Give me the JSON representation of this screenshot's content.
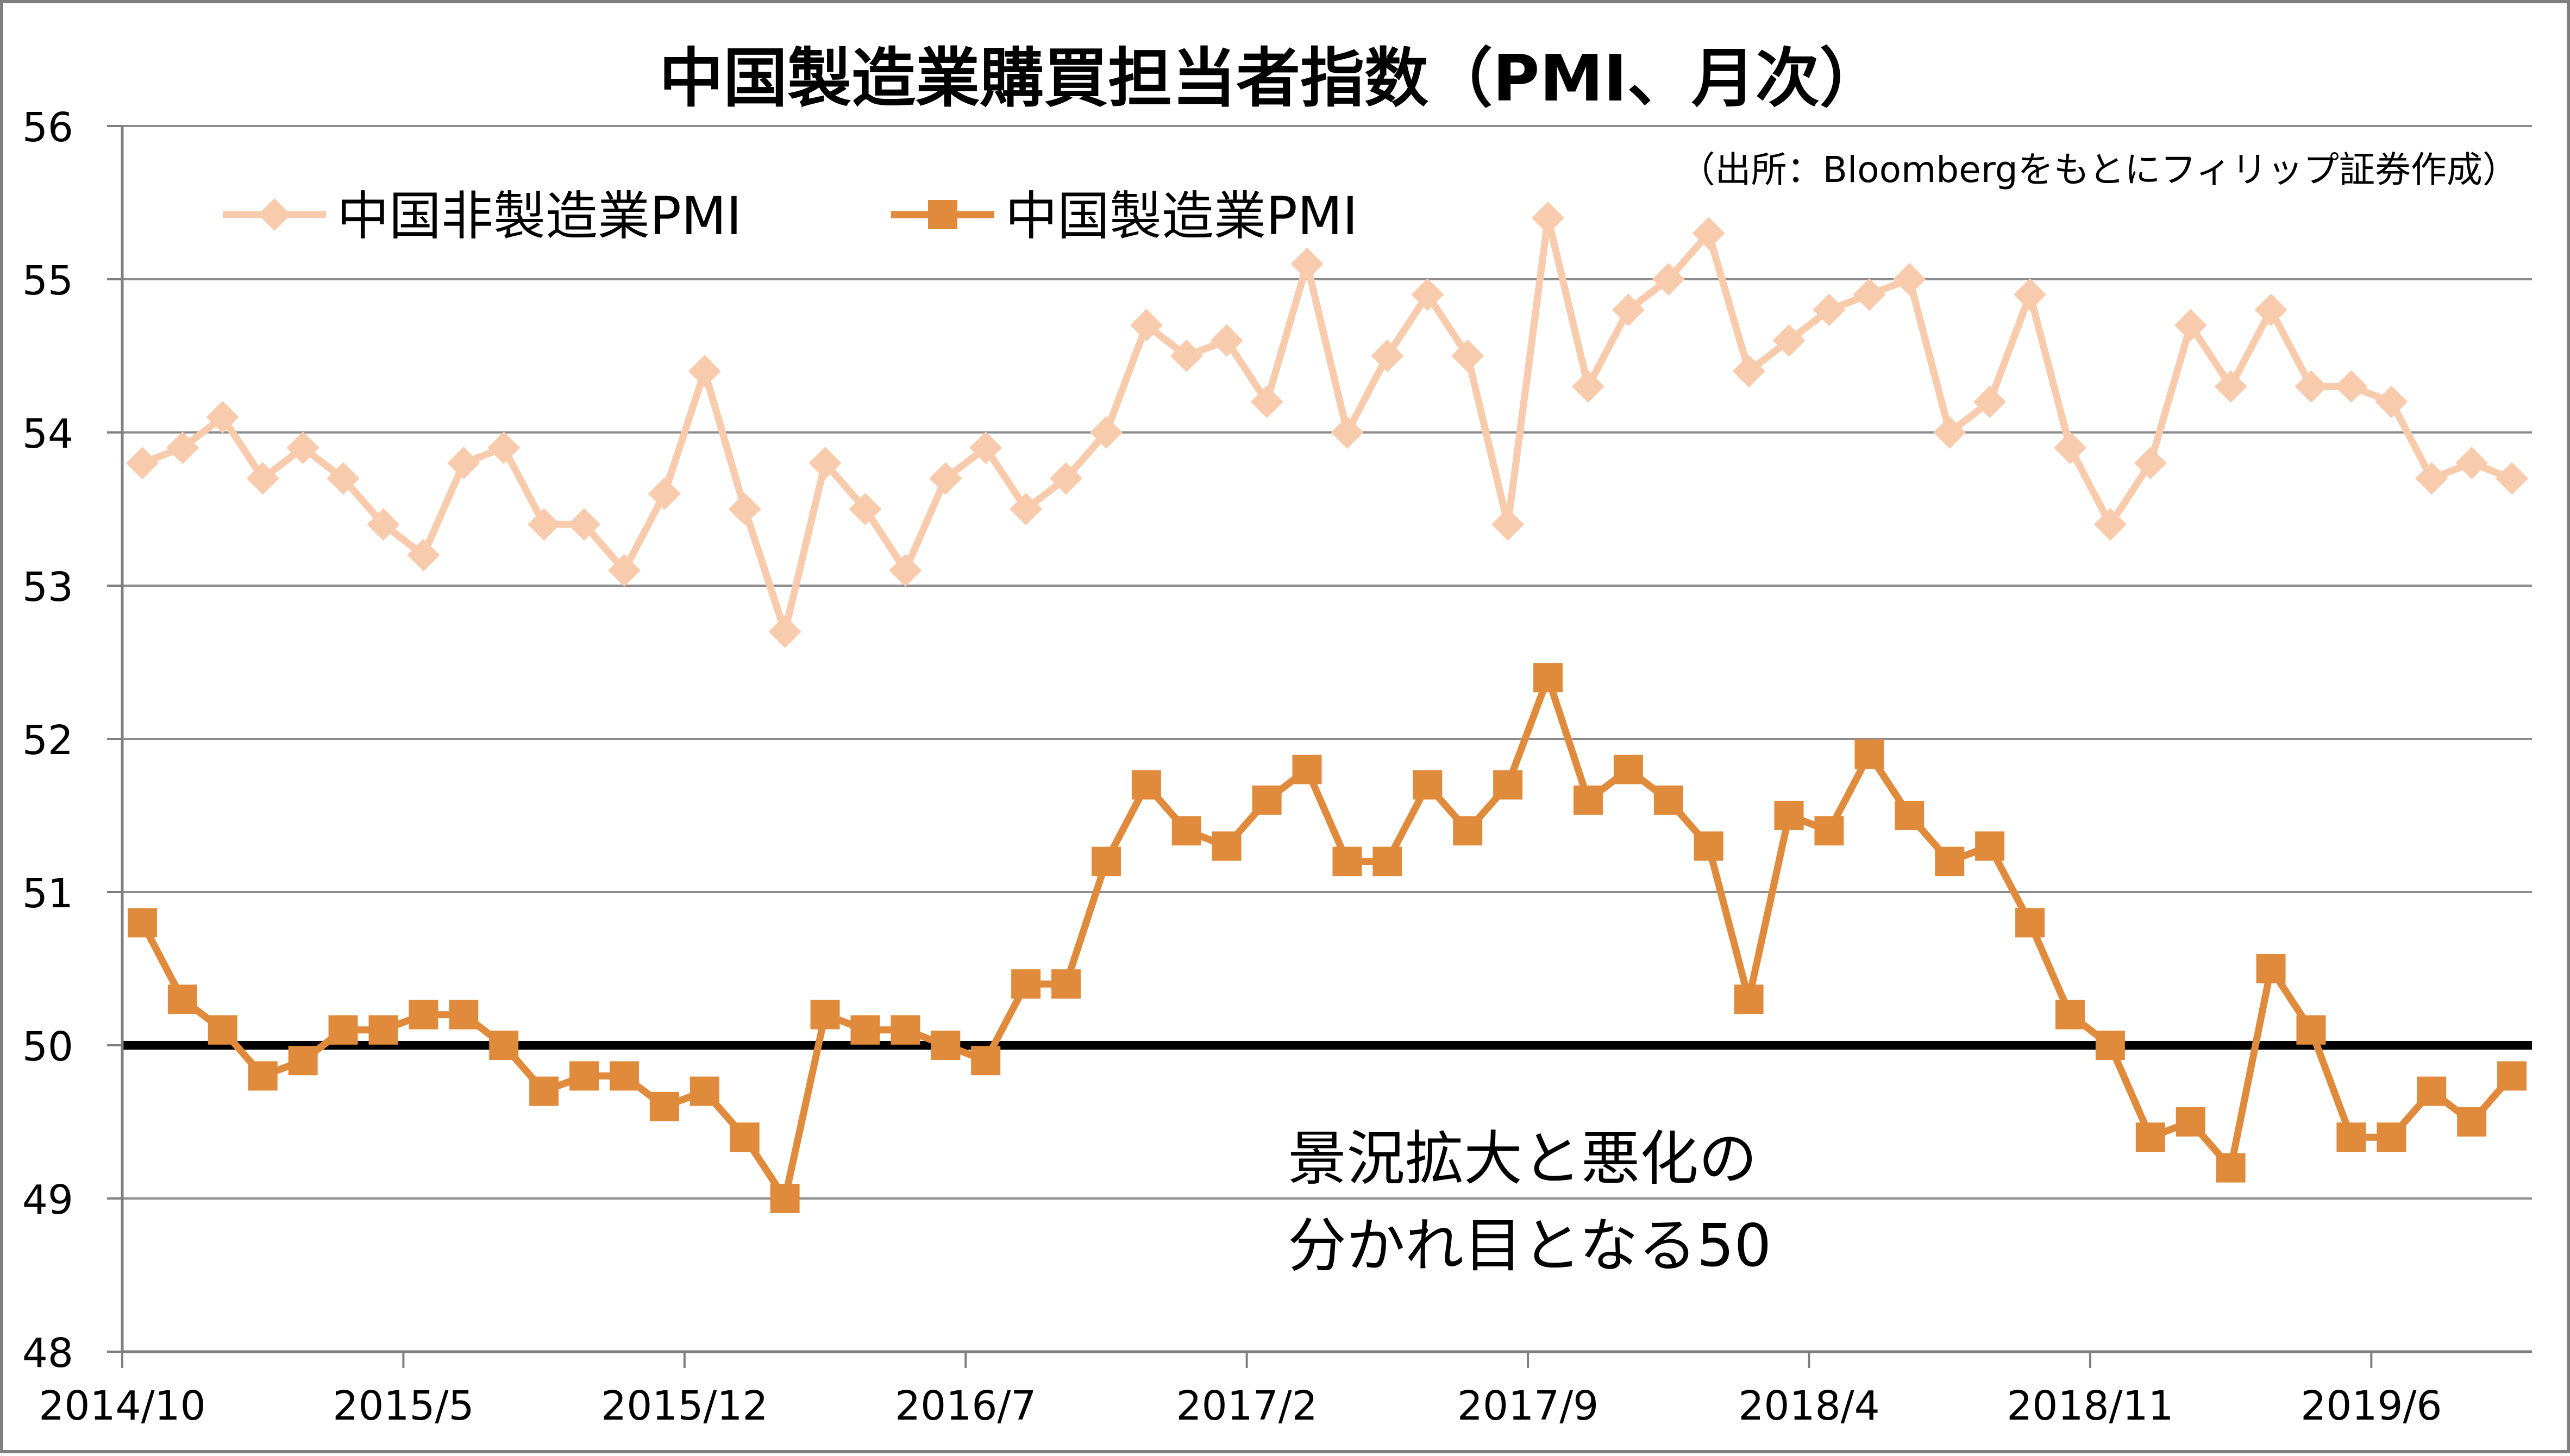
{
  "chart_data": {
    "type": "line",
    "title": "中国製造業購買担当者指数（PMI、月次）",
    "source_note": "（出所：Bloombergをもとにフィリップ証券作成）",
    "annotation": [
      "景況拡大と悪化の",
      "分かれ目となる50"
    ],
    "ylim": [
      48,
      56
    ],
    "yticks": [
      "48",
      "49",
      "50",
      "51",
      "52",
      "53",
      "54",
      "55",
      "56"
    ],
    "xtick_labels": [
      "2014/10",
      "2015/5",
      "2015/12",
      "2016/7",
      "2017/2",
      "2017/9",
      "2018/4",
      "2018/11",
      "2019/6"
    ],
    "xtick_step": 7,
    "reference_line": 50,
    "grid": true,
    "legend_position": "top-left",
    "categories": [
      "2014/10",
      "2014/11",
      "2014/12",
      "2015/1",
      "2015/2",
      "2015/3",
      "2015/4",
      "2015/5",
      "2015/6",
      "2015/7",
      "2015/8",
      "2015/9",
      "2015/10",
      "2015/11",
      "2015/12",
      "2016/1",
      "2016/2",
      "2016/3",
      "2016/4",
      "2016/5",
      "2016/6",
      "2016/7",
      "2016/8",
      "2016/9",
      "2016/10",
      "2016/11",
      "2016/12",
      "2017/1",
      "2017/2",
      "2017/3",
      "2017/4",
      "2017/5",
      "2017/6",
      "2017/7",
      "2017/8",
      "2017/9",
      "2017/10",
      "2017/11",
      "2017/12",
      "2018/1",
      "2018/2",
      "2018/3",
      "2018/4",
      "2018/5",
      "2018/6",
      "2018/7",
      "2018/8",
      "2018/9",
      "2018/10",
      "2018/11",
      "2018/12",
      "2019/1",
      "2019/2",
      "2019/3",
      "2019/4",
      "2019/5",
      "2019/6",
      "2019/7",
      "2019/8",
      "2019/9"
    ],
    "series": [
      {
        "name": "中国非製造業PMI",
        "color": "#f8cbad",
        "marker": "diamond",
        "values": [
          53.8,
          53.9,
          54.1,
          53.7,
          53.9,
          53.7,
          53.4,
          53.2,
          53.8,
          53.9,
          53.4,
          53.4,
          53.1,
          53.6,
          54.4,
          53.5,
          52.7,
          53.8,
          53.5,
          53.1,
          53.7,
          53.9,
          53.5,
          53.7,
          54.0,
          54.7,
          54.5,
          54.6,
          54.2,
          55.1,
          54.0,
          54.5,
          54.9,
          54.5,
          53.4,
          55.4,
          54.3,
          54.8,
          55.0,
          55.3,
          54.4,
          54.6,
          54.8,
          54.9,
          55.0,
          54.0,
          54.2,
          54.9,
          53.9,
          53.4,
          53.8,
          54.7,
          54.3,
          54.8,
          54.3,
          54.3,
          54.2,
          53.7,
          53.8,
          53.7
        ]
      },
      {
        "name": "中国製造業PMI",
        "color": "#e08a3c",
        "marker": "square",
        "values": [
          50.8,
          50.3,
          50.1,
          49.8,
          49.9,
          50.1,
          50.1,
          50.2,
          50.2,
          50.0,
          49.7,
          49.8,
          49.8,
          49.6,
          49.7,
          49.4,
          49.0,
          50.2,
          50.1,
          50.1,
          50.0,
          49.9,
          50.4,
          50.4,
          51.2,
          51.7,
          51.4,
          51.3,
          51.6,
          51.8,
          51.2,
          51.2,
          51.7,
          51.4,
          51.7,
          52.4,
          51.6,
          51.8,
          51.6,
          51.3,
          50.3,
          51.5,
          51.4,
          51.9,
          51.5,
          51.2,
          51.3,
          50.8,
          50.2,
          50.0,
          49.4,
          49.5,
          49.2,
          50.5,
          50.1,
          49.4,
          49.4,
          49.7,
          49.5,
          49.8
        ]
      }
    ]
  }
}
